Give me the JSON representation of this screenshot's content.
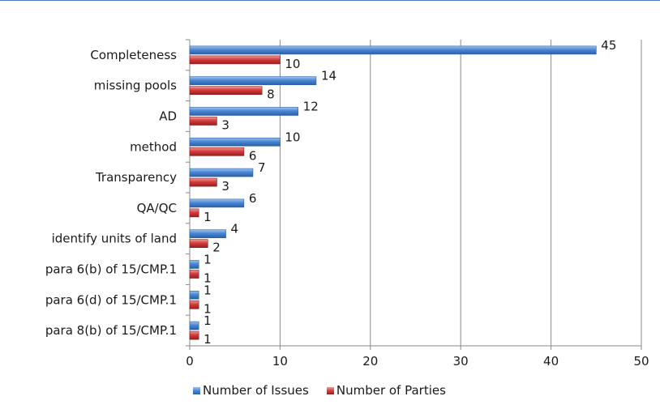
{
  "colors": {
    "issues": "#4a86d4",
    "parties": "#d43c3c",
    "grid": "#8a8a8a"
  },
  "chart_data": {
    "type": "bar",
    "orientation": "horizontal",
    "categories": [
      "Completeness",
      "missing pools",
      "AD",
      "method",
      "Transparency",
      "QA/QC",
      "identify units of land",
      "para 6(b) of 15/CMP.1",
      "para 6(d) of 15/CMP.1",
      "para 8(b) of 15/CMP.1"
    ],
    "series": [
      {
        "name": "Number of Issues",
        "values": [
          45,
          14,
          12,
          10,
          7,
          6,
          4,
          1,
          1,
          1
        ]
      },
      {
        "name": "Number of Parties",
        "values": [
          10,
          8,
          3,
          6,
          3,
          1,
          2,
          1,
          1,
          1
        ]
      }
    ],
    "xlim": [
      0,
      50
    ],
    "xticks": [
      0,
      10,
      20,
      30,
      40,
      50
    ],
    "grid": true,
    "legend_position": "bottom"
  }
}
